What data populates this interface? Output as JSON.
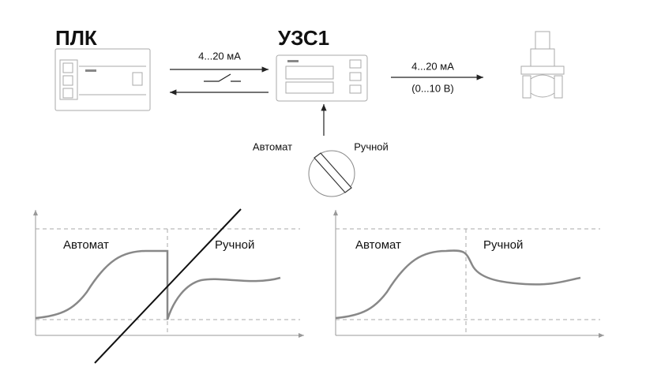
{
  "plc": {
    "title": "ПЛК"
  },
  "link_in": {
    "label": "4...20 мА"
  },
  "device": {
    "title": "УЗС1"
  },
  "link_out": {
    "label": "4...20 мА",
    "sublabel": "(0...10 В)"
  },
  "switch": {
    "left": "Автомат",
    "right": "Ручной"
  },
  "graphs": [
    {
      "left": "Автомат",
      "right": "Ручной"
    },
    {
      "left": "Автомат",
      "right": "Ручной"
    }
  ]
}
